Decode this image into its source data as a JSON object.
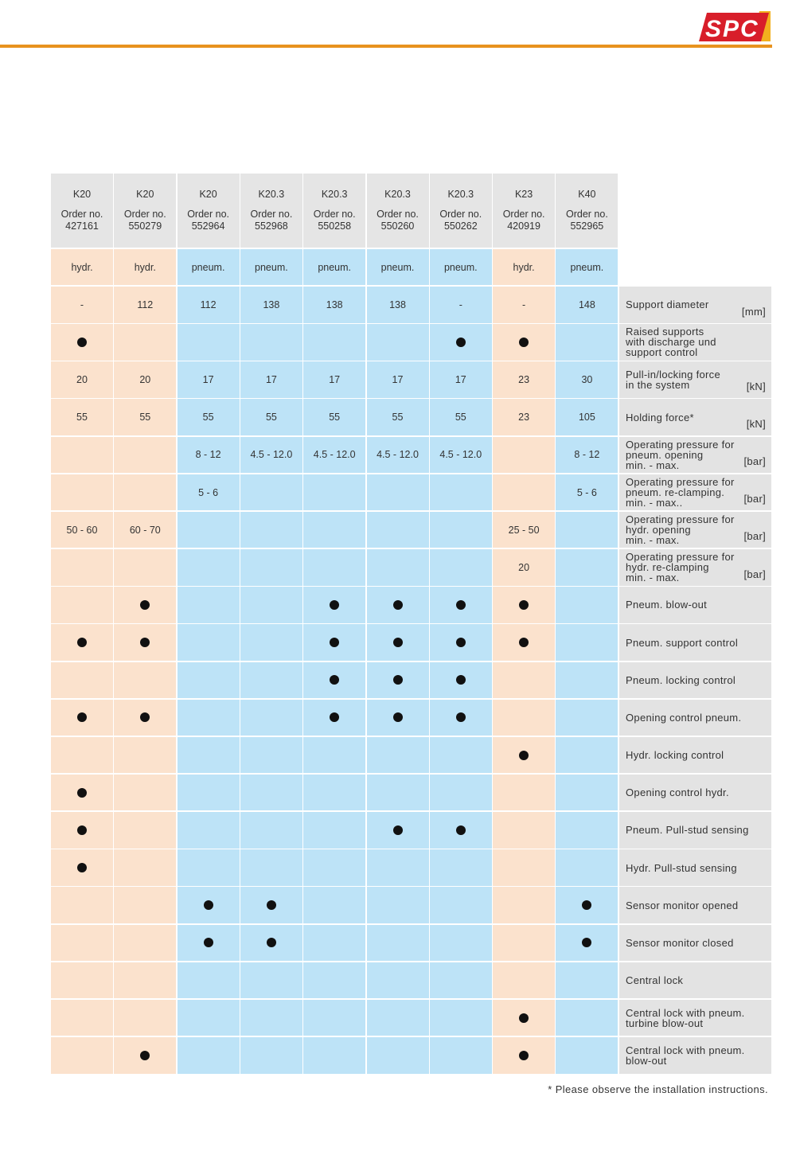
{
  "brand": {
    "logo_text": "SPC",
    "accent": "#e8921e",
    "logo_red": "#d81e2a"
  },
  "header": {
    "columns": [
      {
        "model": "K20",
        "order_label": "Order no.",
        "order_no": "427161"
      },
      {
        "model": "K20",
        "order_label": "Order no.",
        "order_no": "550279"
      },
      {
        "model": "K20",
        "order_label": "Order no.",
        "order_no": "552964"
      },
      {
        "model": "K20.3",
        "order_label": "Order no.",
        "order_no": "552968"
      },
      {
        "model": "K20.3",
        "order_label": "Order no.",
        "order_no": "550258"
      },
      {
        "model": "K20.3",
        "order_label": "Order no.",
        "order_no": "550260"
      },
      {
        "model": "K20.3",
        "order_label": "Order no.",
        "order_no": "550262"
      },
      {
        "model": "K23",
        "order_label": "Order no.",
        "order_no": "420919"
      },
      {
        "model": "K40",
        "order_label": "Order no.",
        "order_no": "552965"
      }
    ],
    "types": [
      "hydr.",
      "hydr.",
      "pneum.",
      "pneum.",
      "pneum.",
      "pneum.",
      "pneum.",
      "hydr.",
      "pneum."
    ]
  },
  "colors": {
    "hydr": "#fbe2cd",
    "pneum": "#bde3f7",
    "header": "#e5e5e5",
    "label": "#e3e3e3"
  },
  "rows": [
    {
      "label": "Support diameter",
      "unit": "[mm]",
      "values": [
        "-",
        "112",
        "112",
        "138",
        "138",
        "138",
        "-",
        "-",
        "148"
      ]
    },
    {
      "label": "Raised supports\nwith discharge und\nsupport control",
      "unit": "",
      "values": [
        "●",
        "",
        "",
        "",
        "",
        "",
        "●",
        "●",
        ""
      ]
    },
    {
      "label": "Pull-in/locking force\nin the system",
      "unit": "[kN]",
      "values": [
        "20",
        "20",
        "17",
        "17",
        "17",
        "17",
        "17",
        "23",
        "30"
      ]
    },
    {
      "label": "Holding force*",
      "unit": "[kN]",
      "values": [
        "55",
        "55",
        "55",
        "55",
        "55",
        "55",
        "55",
        "23",
        "105"
      ]
    },
    {
      "label": "Operating pressure for\npneum. opening\nmin. - max.",
      "unit": "[bar]",
      "values": [
        "",
        "",
        "8 - 12",
        "4.5 - 12.0",
        "4.5 - 12.0",
        "4.5 - 12.0",
        "4.5 - 12.0",
        "",
        "8 - 12"
      ]
    },
    {
      "label": "Operating pressure for\npneum. re-clamping.\nmin. - max..",
      "unit": "[bar]",
      "values": [
        "",
        "",
        "5 - 6",
        "",
        "",
        "",
        "",
        "",
        "5 - 6"
      ]
    },
    {
      "label": "Operating pressure for\nhydr. opening\nmin. - max.",
      "unit": "[bar]",
      "values": [
        "50 - 60",
        "60 - 70",
        "",
        "",
        "",
        "",
        "",
        "25 - 50",
        ""
      ]
    },
    {
      "label": "Operating pressure for\nhydr. re-clamping\nmin. - max.",
      "unit": "[bar]",
      "values": [
        "",
        "",
        "",
        "",
        "",
        "",
        "",
        "20",
        ""
      ]
    },
    {
      "label": "Pneum. blow-out",
      "unit": "",
      "values": [
        "",
        "●",
        "",
        "",
        "●",
        "●",
        "●",
        "●",
        ""
      ]
    },
    {
      "label": "Pneum. support control",
      "unit": "",
      "values": [
        "●",
        "●",
        "",
        "",
        "●",
        "●",
        "●",
        "●",
        ""
      ]
    },
    {
      "label": "Pneum. locking control",
      "unit": "",
      "values": [
        "",
        "",
        "",
        "",
        "●",
        "●",
        "●",
        "",
        ""
      ]
    },
    {
      "label": "Opening control pneum.",
      "unit": "",
      "values": [
        "●",
        "●",
        "",
        "",
        "●",
        "●",
        "●",
        "",
        ""
      ]
    },
    {
      "label": "Hydr. locking control",
      "unit": "",
      "values": [
        "",
        "",
        "",
        "",
        "",
        "",
        "",
        "●",
        ""
      ]
    },
    {
      "label": "Opening control hydr.",
      "unit": "",
      "values": [
        "●",
        "",
        "",
        "",
        "",
        "",
        "",
        "",
        ""
      ]
    },
    {
      "label": "Pneum. Pull-stud sensing",
      "unit": "",
      "values": [
        "●",
        "",
        "",
        "",
        "",
        "●",
        "●",
        "",
        ""
      ]
    },
    {
      "label": "Hydr. Pull-stud sensing",
      "unit": "",
      "values": [
        "●",
        "",
        "",
        "",
        "",
        "",
        "",
        "",
        ""
      ]
    },
    {
      "label": "Sensor monitor opened",
      "unit": "",
      "values": [
        "",
        "",
        "●",
        "●",
        "",
        "",
        "",
        "",
        "●"
      ]
    },
    {
      "label": "Sensor monitor closed",
      "unit": "",
      "values": [
        "",
        "",
        "●",
        "●",
        "",
        "",
        "",
        "",
        "●"
      ]
    },
    {
      "label": "Central lock",
      "unit": "",
      "values": [
        "",
        "",
        "",
        "",
        "",
        "",
        "",
        "",
        ""
      ]
    },
    {
      "label": "Central lock with pneum.\nturbine blow-out",
      "unit": "",
      "values": [
        "",
        "",
        "",
        "",
        "",
        "",
        "",
        "●",
        ""
      ]
    },
    {
      "label": "Central lock with pneum.\nblow-out",
      "unit": "",
      "values": [
        "",
        "●",
        "",
        "",
        "",
        "",
        "",
        "●",
        ""
      ]
    }
  ],
  "footnote": "* Please observe the installation instructions."
}
